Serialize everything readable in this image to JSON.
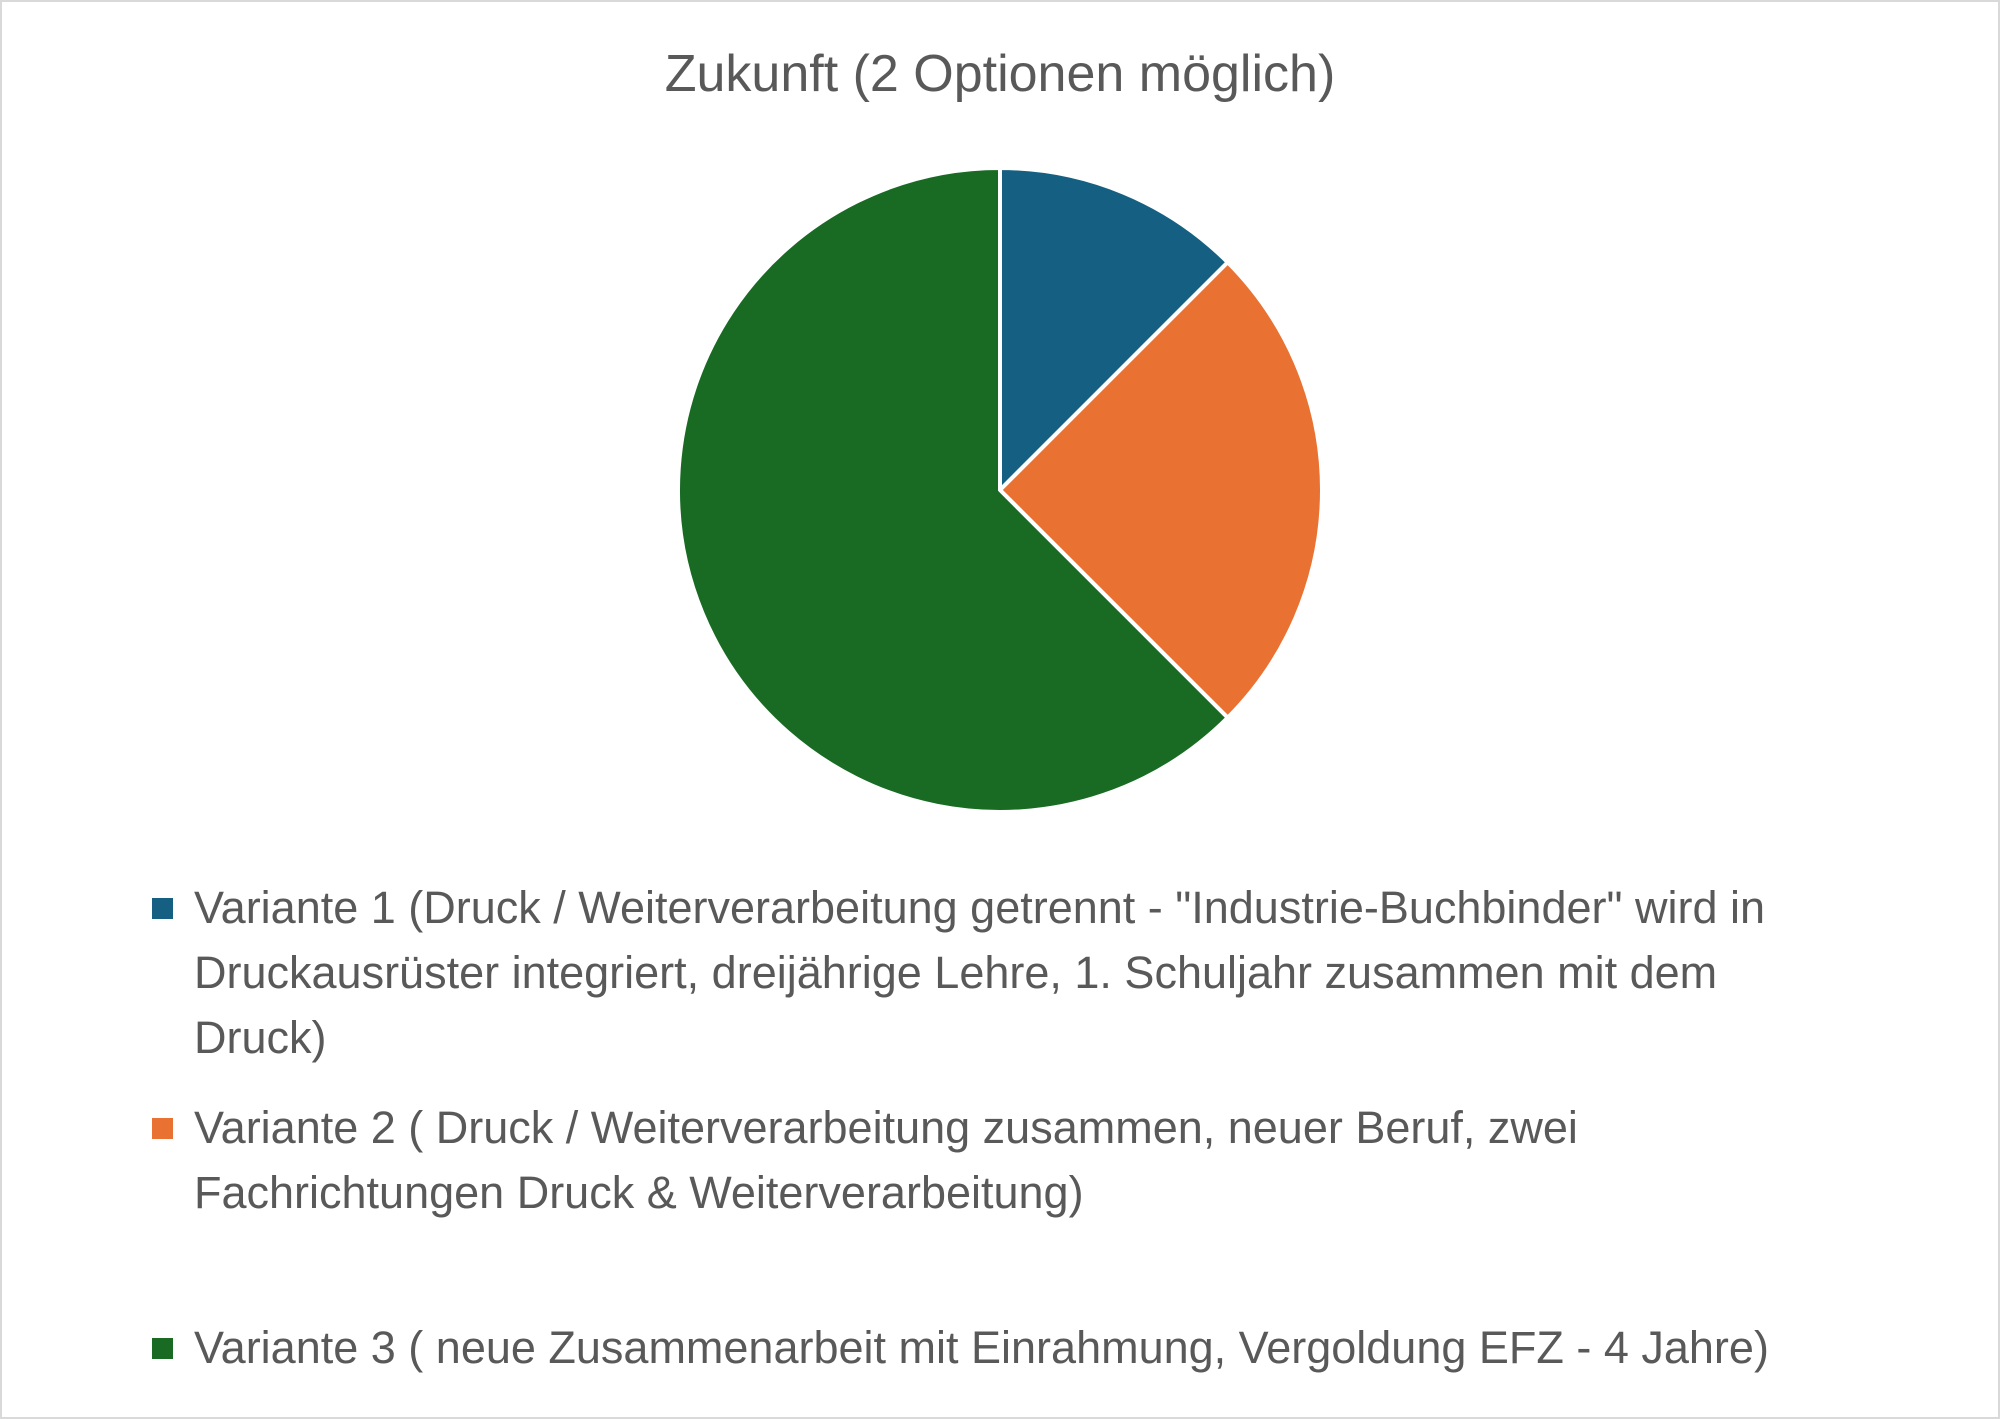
{
  "chart_data": {
    "type": "pie",
    "title": "Zukunft (2 Optionen möglich)",
    "categories": [
      "Variante 1 (Druck / Weiterverarbeitung getrennt - \"Industrie-Buchbinder\" wird in Druckausrüster integriert, dreijährige Lehre, 1. Schuljahr zusammen mit dem Druck)",
      "Variante 2 ( Druck / Weiterverarbeitung zusammen, neuer Beruf, zwei Fachrichtungen Druck & Weiterverarbeitung)",
      "Variante 3 ( neue Zusammenarbeit mit Einrahmung, Vergoldung EFZ - 4 Jahre)"
    ],
    "values": [
      1,
      2,
      5
    ],
    "colors": [
      "#156082",
      "#e97132",
      "#196b24"
    ],
    "legend_position": "bottom",
    "start_angle_deg": 0,
    "direction": "clockwise"
  },
  "legend": {
    "lines": [
      "Variante 1 (Druck / Weiterverarbeitung getrennt - \"Industrie-Buchbinder\" wird in\nDruckausrüster integriert, dreijährige Lehre, 1. Schuljahr zusammen mit dem\nDruck)",
      "Variante 2 ( Druck / Weiterverarbeitung zusammen, neuer Beruf, zwei\nFachrichtungen Druck & Weiterverarbeitung)",
      "Variante 3 ( neue Zusammenarbeit mit Einrahmung, Vergoldung EFZ - 4 Jahre)"
    ]
  }
}
